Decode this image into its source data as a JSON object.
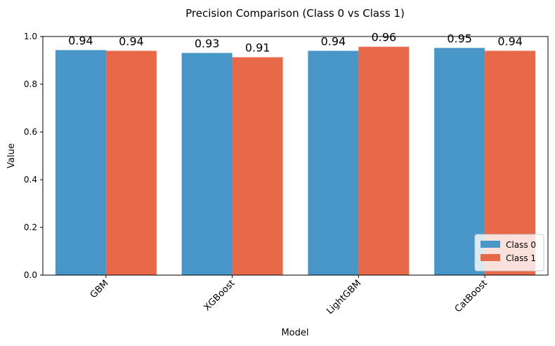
{
  "chart_data": {
    "type": "bar",
    "title": "Precision Comparison (Class 0 vs Class 1)",
    "xlabel": "Model",
    "ylabel": "Value",
    "ylim": [
      0,
      1.0
    ],
    "yticks": [
      0.0,
      0.2,
      0.4,
      0.6,
      0.8,
      1.0
    ],
    "ytick_labels": [
      "0.0",
      "0.2",
      "0.4",
      "0.6",
      "0.8",
      "1.0"
    ],
    "categories": [
      "GBM",
      "XGBoost",
      "LightGBM",
      "CatBoost"
    ],
    "series": [
      {
        "name": "Class 0",
        "values": [
          0.943,
          0.931,
          0.94,
          0.952
        ],
        "labels": [
          "0.94",
          "0.93",
          "0.94",
          "0.95"
        ],
        "color": "#4896c8"
      },
      {
        "name": "Class 1",
        "values": [
          0.94,
          0.913,
          0.957,
          0.94
        ],
        "labels": [
          "0.94",
          "0.91",
          "0.96",
          "0.94"
        ],
        "color": "#e8684a"
      }
    ],
    "legend_position": "lower-right",
    "grid": false
  }
}
